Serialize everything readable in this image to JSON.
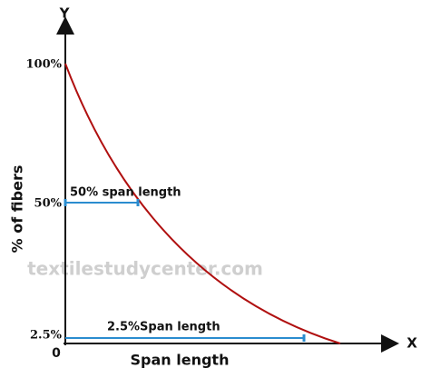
{
  "axes": {
    "y_label": "Y",
    "x_label": "X",
    "origin": "0",
    "y_title": "% of fibers",
    "x_title": "Span length"
  },
  "y_ticks": [
    "100%",
    "50%",
    "2.5%"
  ],
  "annotations": [
    "50% span length",
    "2.5%Span length"
  ],
  "watermark": "textilestudycenter.com"
}
